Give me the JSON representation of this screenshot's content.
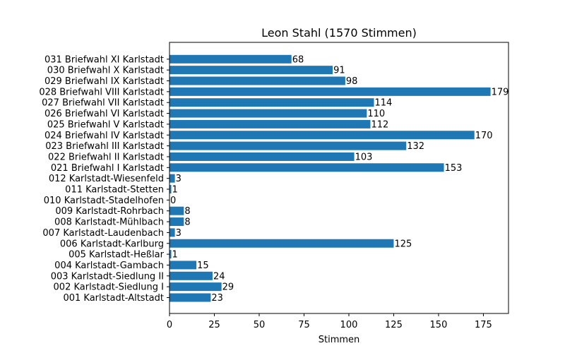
{
  "chart_data": {
    "type": "bar",
    "orientation": "horizontal",
    "title": "Leon Stahl (1570 Stimmen)",
    "xlabel": "Stimmen",
    "ylabel": "",
    "xlim": [
      0,
      189
    ],
    "xticks": [
      0,
      25,
      50,
      75,
      100,
      125,
      150,
      175
    ],
    "grid": false,
    "bar_color": "#1f77b4",
    "categories": [
      "001 Karlstadt-Altstadt",
      "002 Karlstadt-Siedlung I",
      "003 Karlstadt-Siedlung II",
      "004 Karlstadt-Gambach",
      "005 Karlstadt-Heßlar",
      "006 Karlstadt-Karlburg",
      "007 Karlstadt-Laudenbach",
      "008 Karlstadt-Mühlbach",
      "009 Karlstadt-Rohrbach",
      "010 Karlstadt-Stadelhofen",
      "011 Karlstadt-Stetten",
      "012 Karlstadt-Wiesenfeld",
      "021 Briefwahl I Karlstadt",
      "022 Briefwahl II Karlstadt",
      "023 Briefwahl III Karlstadt",
      "024 Briefwahl IV Karlstadt",
      "025 Briefwahl V Karlstadt",
      "026 Briefwahl VI Karlstadt",
      "027 Briefwahl VII Karlstadt",
      "028 Briefwahl VIII Karlstadt",
      "029 Briefwahl IX Karlstadt",
      "030 Briefwahl X Karlstadt",
      "031 Briefwahl XI Karlstadt"
    ],
    "values": [
      23,
      29,
      24,
      15,
      1,
      125,
      3,
      8,
      8,
      0,
      1,
      3,
      153,
      103,
      132,
      170,
      112,
      110,
      114,
      179,
      98,
      91,
      68
    ]
  }
}
